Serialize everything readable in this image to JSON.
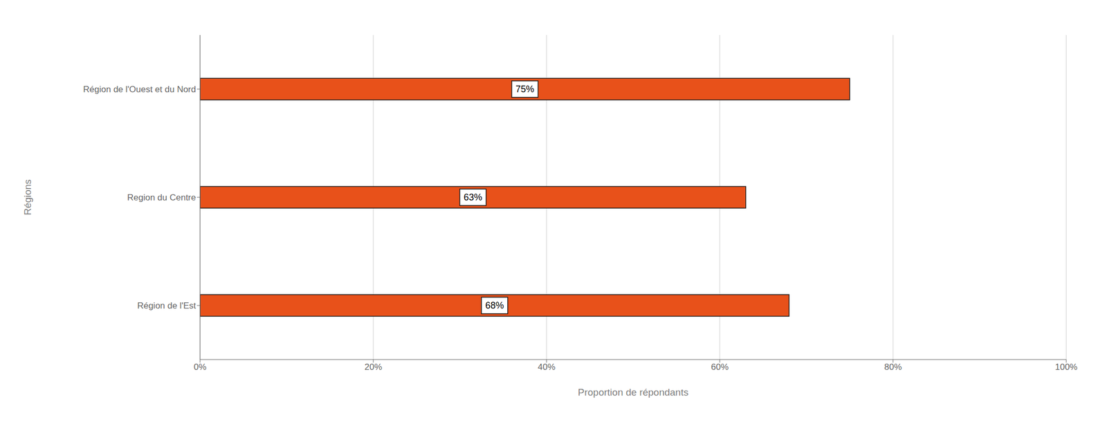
{
  "chart_data": {
    "type": "bar",
    "orientation": "horizontal",
    "categories": [
      "Région de l'Est",
      "Region du Centre",
      "Région de l'Ouest et du Nord"
    ],
    "values": [
      68,
      63,
      75
    ],
    "value_labels": [
      "68%",
      "63%",
      "75%"
    ],
    "data_labels": true,
    "color": "#E8511A",
    "xlabel": "Proportion de répondants",
    "ylabel": "Régions",
    "xlim": [
      0,
      100
    ],
    "xticks": [
      {
        "value": 0,
        "label": "0%"
      },
      {
        "value": 20,
        "label": "20%"
      },
      {
        "value": 40,
        "label": "40%"
      },
      {
        "value": 60,
        "label": "60%"
      },
      {
        "value": 80,
        "label": "80%"
      },
      {
        "value": 100,
        "label": "100%"
      }
    ],
    "grid": true
  }
}
